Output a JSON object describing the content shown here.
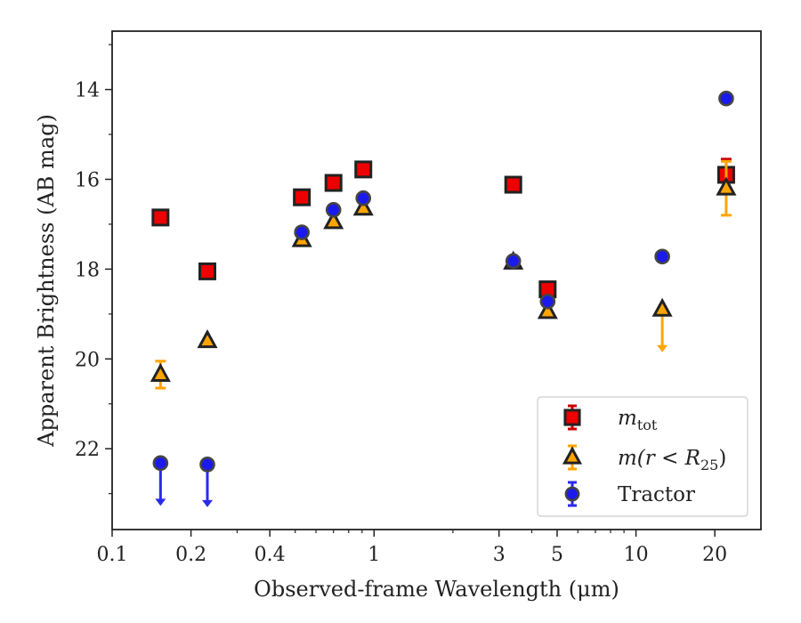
{
  "chart_data": {
    "type": "scatter",
    "title": "",
    "xlabel": "Observed-frame Wavelength (μm)",
    "ylabel": "Apparent Brightness (AB mag)",
    "xscale": "log",
    "xlim": [
      0.1,
      30
    ],
    "ylim": [
      23.8,
      12.7
    ],
    "y_inverted": true,
    "x_ticks": [
      {
        "value": 0.1,
        "label": "0.1"
      },
      {
        "value": 0.2,
        "label": "0.2"
      },
      {
        "value": 0.4,
        "label": "0.4"
      },
      {
        "value": 1,
        "label": "1"
      },
      {
        "value": 3,
        "label": "3"
      },
      {
        "value": 5,
        "label": "5"
      },
      {
        "value": 10,
        "label": "10"
      },
      {
        "value": 20,
        "label": "20"
      }
    ],
    "y_ticks": [
      14,
      16,
      18,
      20,
      22
    ],
    "grid": false,
    "legend_position": "bottom-right",
    "series": [
      {
        "name": "m_tot",
        "label_main": "m",
        "label_sub": "tot",
        "marker": "square",
        "color": "#ee0000",
        "error_color": "#cc0000",
        "x": [
          0.153,
          0.231,
          0.53,
          0.7,
          0.91,
          3.4,
          4.6,
          22.1
        ],
        "y": [
          16.85,
          18.05,
          16.4,
          16.08,
          15.78,
          16.12,
          18.45,
          15.9
        ],
        "yerr": [
          0.05,
          0.05,
          0.05,
          0.05,
          0.05,
          0.05,
          0.05,
          0.35
        ],
        "upper_limit": [
          false,
          false,
          false,
          false,
          false,
          false,
          false,
          false
        ]
      },
      {
        "name": "m(r < R25)",
        "label_main": "m(r < R",
        "label_sub": "25",
        "label_tail": ")",
        "marker": "triangle",
        "color": "#ffa500",
        "error_color": "#ffa500",
        "x": [
          0.153,
          0.231,
          0.53,
          0.7,
          0.91,
          3.4,
          4.6,
          12.6,
          22.1
        ],
        "y": [
          20.35,
          19.6,
          17.35,
          16.95,
          16.65,
          17.85,
          18.95,
          18.9,
          16.2
        ],
        "yerr": [
          0.3,
          0.05,
          0.05,
          0.05,
          0.05,
          0.05,
          0.05,
          0.0,
          0.6
        ],
        "upper_limit": [
          false,
          false,
          false,
          false,
          false,
          false,
          false,
          true,
          false
        ]
      },
      {
        "name": "Tractor",
        "label_main": "Tractor",
        "marker": "circle",
        "color": "#1a1aee",
        "error_color": "#2a2aee",
        "x": [
          0.153,
          0.231,
          0.53,
          0.7,
          0.91,
          3.4,
          4.6,
          12.6,
          22.1
        ],
        "y": [
          22.32,
          22.35,
          17.18,
          16.68,
          16.42,
          17.82,
          18.72,
          17.72,
          14.2
        ],
        "yerr": [
          0.0,
          0.0,
          0.05,
          0.05,
          0.05,
          0.05,
          0.05,
          0.05,
          0.05
        ],
        "upper_limit": [
          true,
          true,
          false,
          false,
          false,
          false,
          false,
          false,
          false
        ]
      }
    ]
  }
}
